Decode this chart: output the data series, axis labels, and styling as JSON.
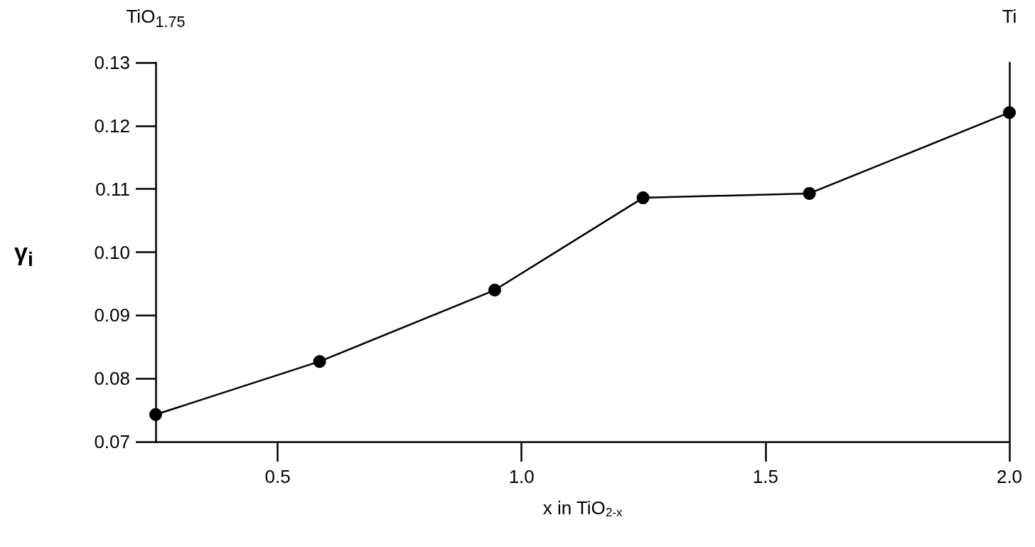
{
  "chart_data": {
    "type": "line",
    "xlabel": "x in TiO$_{2-x}$",
    "ylabel": "γ$_{i}$",
    "x": [
      0.25,
      0.586,
      0.945,
      1.249,
      1.59,
      2.0
    ],
    "series": [
      {
        "color": "#000000",
        "values": [
          0.0743,
          0.0827,
          0.094,
          0.1086,
          0.1093,
          0.1221
        ]
      }
    ],
    "xlim": [
      0.25,
      2.0
    ],
    "xticks": [
      0.5,
      {
        "value": 1.0,
        "label": "1.0"
      },
      1.5,
      {
        "value": 2.0,
        "label": "2.0"
      }
    ],
    "ylim": [
      0.07,
      0.13
    ],
    "yticks": [
      0.07,
      0.08,
      0.09,
      {
        "value": 0.1,
        "label": "0.10"
      },
      0.11,
      0.12,
      0.13
    ],
    "annotations": [
      "TiO$_{1.75}$",
      "Ti"
    ],
    "grid": false,
    "marker": "circle",
    "line_style": "solid"
  }
}
